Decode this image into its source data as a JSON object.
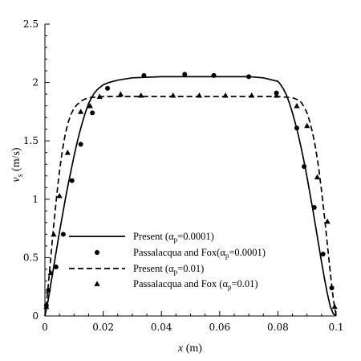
{
  "chart_data": {
    "type": "line",
    "xlabel_var": "x",
    "xlabel_unit": " (m)",
    "ylabel_var": "v",
    "ylabel_sub": "s",
    "ylabel_unit": " (m/s)",
    "xlim": [
      0,
      0.1
    ],
    "ylim": [
      0,
      2.5
    ],
    "xticks": [
      0,
      0.02,
      0.04,
      0.06,
      0.08,
      0.1
    ],
    "xtick_labels": [
      "0",
      "0.02",
      "0.04",
      "0.06",
      "0.08",
      "0.1"
    ],
    "yticks": [
      0,
      0.5,
      1,
      1.5,
      2,
      2.5
    ],
    "ytick_labels": [
      "0",
      "0.5",
      "1",
      "1.5",
      "2",
      "2.5"
    ],
    "grid": false,
    "legend_position": "lower-center",
    "series": [
      {
        "id": "present-0001",
        "legend_prefix": "Present (",
        "legend_alpha": "α",
        "legend_sub": "p",
        "legend_suffix": "=0.0001)",
        "style": "solid-line",
        "x": [
          0,
          0.001,
          0.002,
          0.003,
          0.004,
          0.005,
          0.006,
          0.007,
          0.008,
          0.009,
          0.01,
          0.011,
          0.012,
          0.013,
          0.014,
          0.015,
          0.016,
          0.017,
          0.018,
          0.019,
          0.02,
          0.022,
          0.025,
          0.03,
          0.04,
          0.05,
          0.06,
          0.07,
          0.075,
          0.08,
          0.081,
          0.082,
          0.083,
          0.084,
          0.085,
          0.086,
          0.087,
          0.088,
          0.089,
          0.09,
          0.091,
          0.092,
          0.093,
          0.094,
          0.095,
          0.096,
          0.097,
          0.098,
          0.099,
          0.1
        ],
        "y": [
          0.0,
          0.12,
          0.27,
          0.42,
          0.57,
          0.72,
          0.86,
          1.0,
          1.13,
          1.25,
          1.37,
          1.48,
          1.58,
          1.67,
          1.75,
          1.82,
          1.87,
          1.91,
          1.94,
          1.96,
          1.98,
          2.0,
          2.02,
          2.04,
          2.05,
          2.05,
          2.05,
          2.05,
          2.04,
          2.01,
          1.98,
          1.94,
          1.89,
          1.82,
          1.74,
          1.65,
          1.55,
          1.44,
          1.32,
          1.19,
          1.05,
          0.91,
          0.76,
          0.61,
          0.46,
          0.32,
          0.19,
          0.08,
          0.02,
          0.0
        ]
      },
      {
        "id": "pf-0001",
        "legend_prefix": "Passalacqua and Fox(",
        "legend_alpha": "α",
        "legend_sub": "p",
        "legend_suffix": "=0.0001)",
        "style": "circle-markers",
        "x": [
          0.0005,
          0.0012,
          0.0038,
          0.0063,
          0.0093,
          0.0123,
          0.0163,
          0.0215,
          0.034,
          0.048,
          0.058,
          0.07,
          0.0795,
          0.0865,
          0.089,
          0.0925,
          0.0955,
          0.0985
        ],
        "y": [
          0.09,
          0.22,
          0.42,
          0.7,
          1.16,
          1.47,
          1.74,
          1.95,
          2.06,
          2.07,
          2.06,
          2.05,
          1.91,
          1.61,
          1.28,
          0.93,
          0.53,
          0.24
        ]
      },
      {
        "id": "present-01",
        "legend_prefix": "Present (",
        "legend_alpha": "α",
        "legend_sub": "p",
        "legend_suffix": "=0.01)",
        "style": "dashed-line",
        "x": [
          0,
          0.001,
          0.002,
          0.003,
          0.004,
          0.005,
          0.006,
          0.007,
          0.008,
          0.009,
          0.01,
          0.011,
          0.012,
          0.013,
          0.015,
          0.02,
          0.03,
          0.04,
          0.05,
          0.06,
          0.07,
          0.08,
          0.085,
          0.087,
          0.088,
          0.089,
          0.09,
          0.091,
          0.092,
          0.093,
          0.094,
          0.095,
          0.096,
          0.097,
          0.098,
          0.099,
          0.1
        ],
        "y": [
          0.0,
          0.22,
          0.5,
          0.77,
          1.02,
          1.24,
          1.42,
          1.56,
          1.66,
          1.73,
          1.78,
          1.81,
          1.83,
          1.85,
          1.87,
          1.88,
          1.88,
          1.88,
          1.88,
          1.88,
          1.88,
          1.88,
          1.87,
          1.85,
          1.83,
          1.79,
          1.74,
          1.66,
          1.56,
          1.43,
          1.27,
          1.07,
          0.85,
          0.61,
          0.37,
          0.15,
          0.0
        ]
      },
      {
        "id": "pf-01",
        "legend_prefix": "Passalacqua and Fox (",
        "legend_alpha": "α",
        "legend_sub": "p",
        "legend_suffix": "=0.01)",
        "style": "triangle-markers",
        "x": [
          0.0005,
          0.002,
          0.003,
          0.005,
          0.0078,
          0.0123,
          0.0155,
          0.0188,
          0.026,
          0.033,
          0.044,
          0.053,
          0.062,
          0.071,
          0.0795,
          0.0865,
          0.09,
          0.0935,
          0.097,
          0.0995
        ],
        "y": [
          0.08,
          0.37,
          0.7,
          1.03,
          1.4,
          1.75,
          1.8,
          1.88,
          1.9,
          1.89,
          1.89,
          1.89,
          1.89,
          1.89,
          1.89,
          1.8,
          1.63,
          1.19,
          0.81,
          0.08
        ]
      }
    ]
  }
}
